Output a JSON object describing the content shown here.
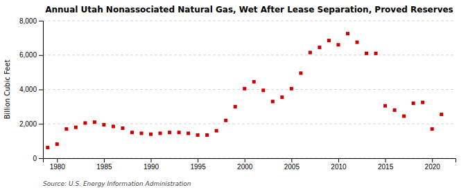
{
  "chart_data": {
    "type": "scatter",
    "title": "Annual Utah Nonassociated Natural Gas, Wet After Lease Separation, Proved Reserves",
    "ylabel": "Billion Cubic Feet",
    "source": "Source: U.S. Energy Information Administration",
    "x": [
      1979,
      1980,
      1981,
      1982,
      1983,
      1984,
      1985,
      1986,
      1987,
      1988,
      1989,
      1990,
      1991,
      1992,
      1993,
      1994,
      1995,
      1996,
      1997,
      1998,
      1999,
      2000,
      2001,
      2002,
      2003,
      2004,
      2005,
      2006,
      2007,
      2008,
      2009,
      2010,
      2011,
      2012,
      2013,
      2014,
      2015,
      2016,
      2017,
      2018,
      2019,
      2020,
      2021
    ],
    "values": [
      620,
      820,
      1700,
      1800,
      2050,
      2100,
      1950,
      1850,
      1750,
      1500,
      1450,
      1400,
      1450,
      1500,
      1500,
      1450,
      1350,
      1350,
      1600,
      2200,
      3000,
      4050,
      4450,
      3950,
      3300,
      3550,
      4050,
      4950,
      6150,
      6450,
      6850,
      6600,
      7250,
      6750,
      6100,
      6100,
      3050,
      2800,
      2450,
      3200,
      3250,
      1700,
      2550
    ],
    "color": "#cc0000",
    "marker": "square",
    "xlim": [
      1978.5,
      2022.5
    ],
    "xticks": [
      1980,
      1985,
      1990,
      1995,
      2000,
      2005,
      2010,
      2015,
      2020
    ],
    "ylim": [
      0,
      8000
    ],
    "yticks": [
      0,
      {
        "value": 2000,
        "label": "2,000"
      },
      {
        "value": 4000,
        "label": "4,000"
      },
      {
        "value": 6000,
        "label": "6,000"
      },
      {
        "value": 8000,
        "label": "8,000"
      }
    ],
    "grid": true
  }
}
